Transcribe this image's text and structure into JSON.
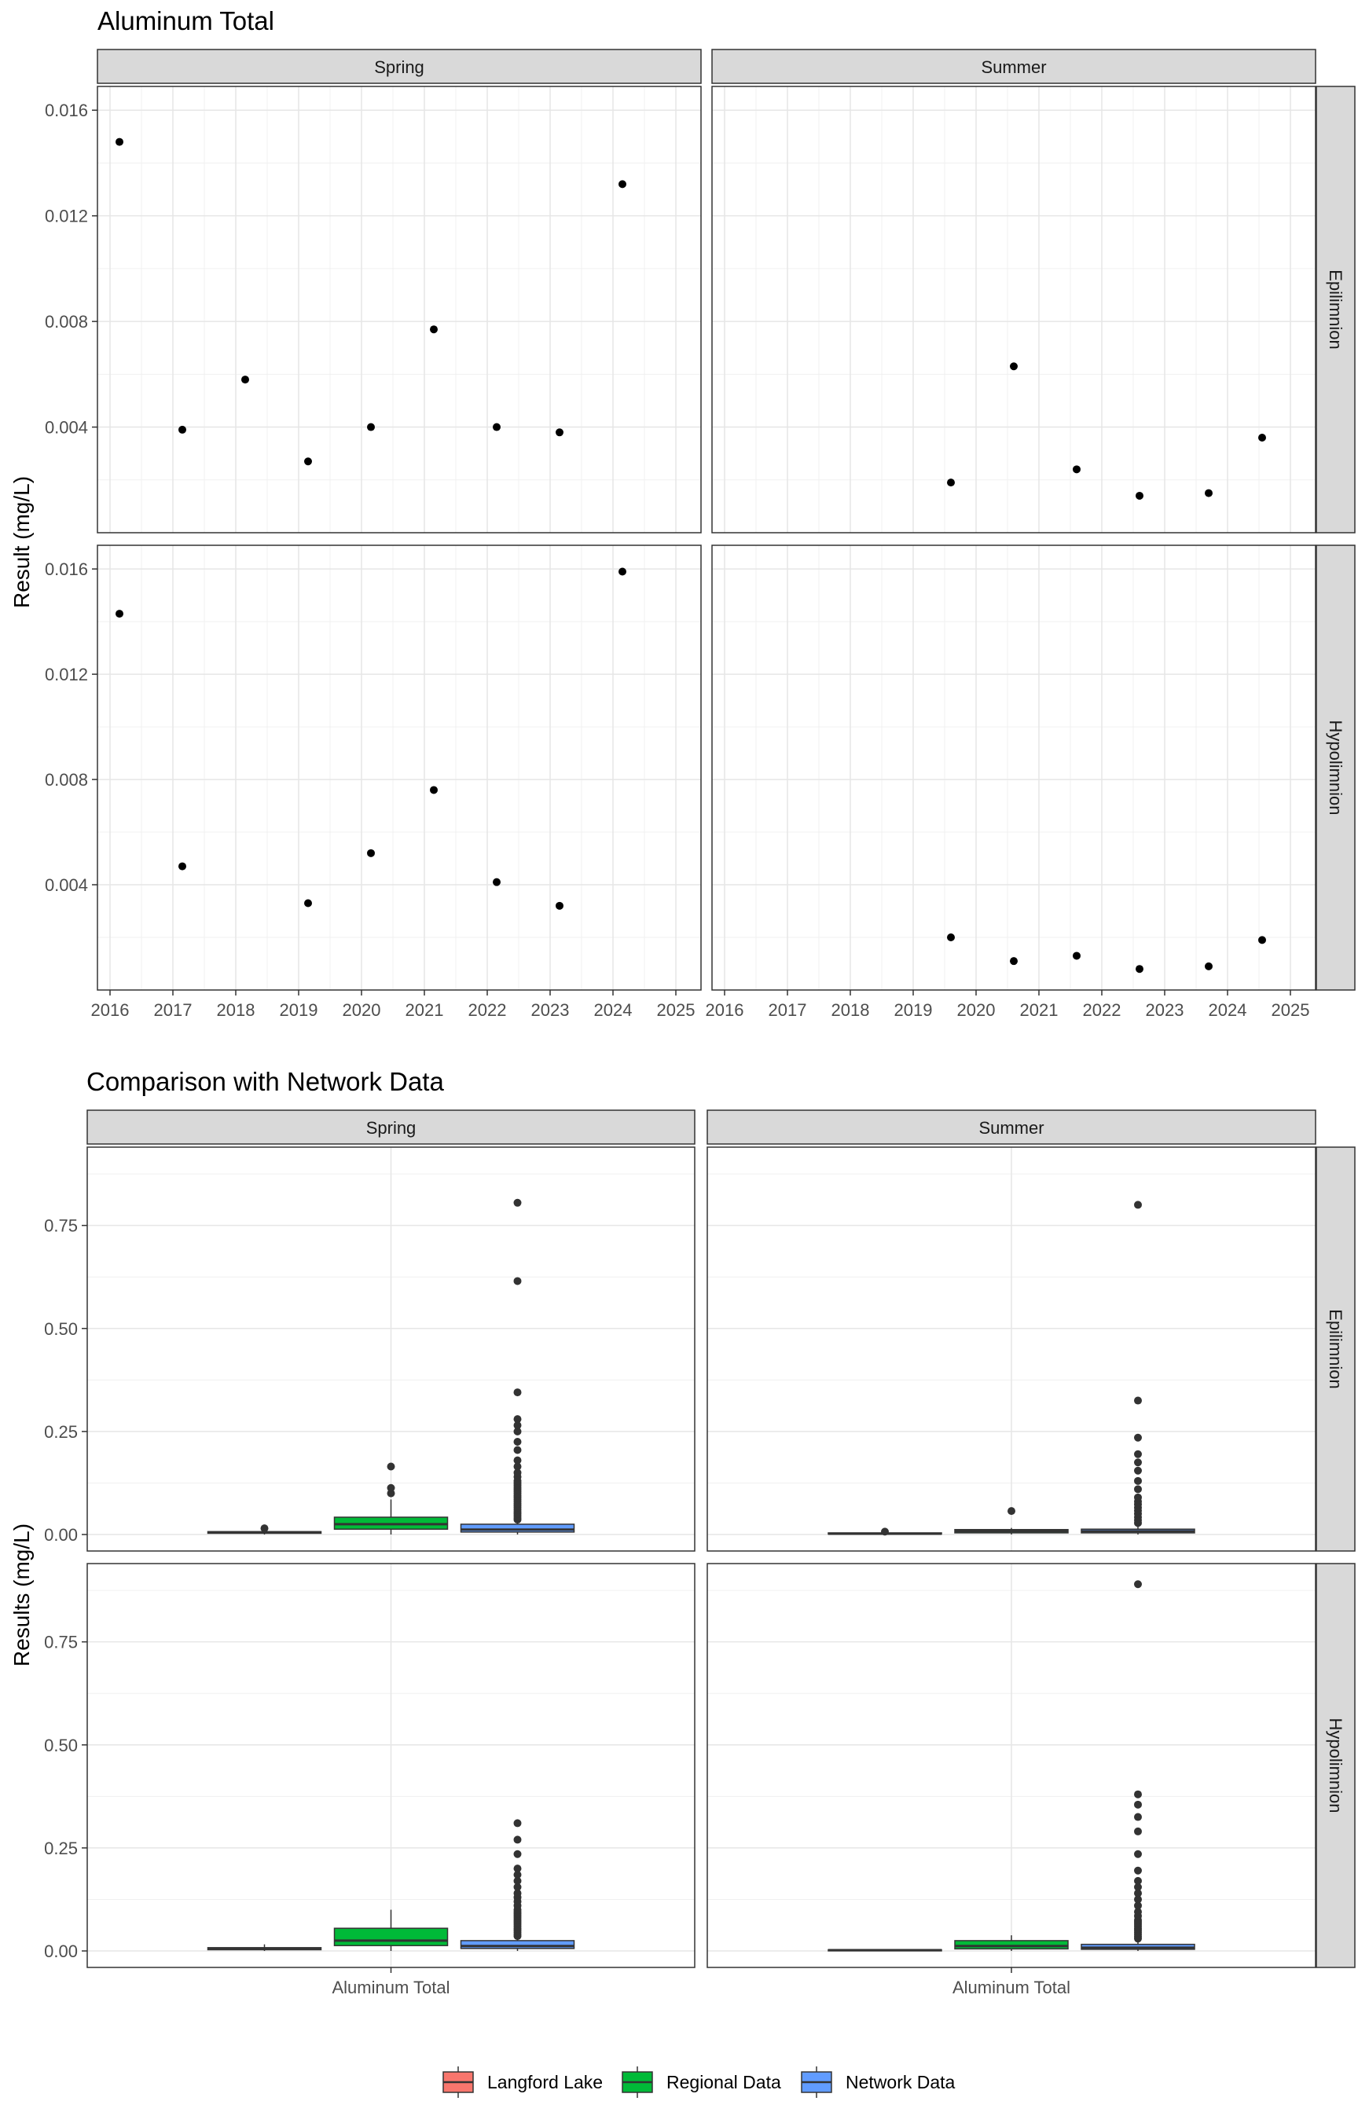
{
  "chart_data": [
    {
      "type": "scatter",
      "title": "Aluminum Total",
      "ylabel": "Result (mg/L)",
      "xlabel": "",
      "facet_cols": [
        "Spring",
        "Summer"
      ],
      "facet_rows": [
        "Epilimnion",
        "Hypolimnion"
      ],
      "xlim": [
        2015.8,
        2025.4
      ],
      "ylim": [
        0,
        0.0169
      ],
      "x_ticks": [
        2016,
        2017,
        2018,
        2019,
        2020,
        2021,
        2022,
        2023,
        2024,
        2025
      ],
      "x_tick_labels": [
        "2016",
        "2017",
        "2018",
        "2019",
        "2020",
        "2021",
        "2022",
        "2023",
        "2024",
        "2025"
      ],
      "y_ticks": [
        0.004,
        0.008,
        0.012,
        0.016
      ],
      "y_tick_labels": [
        "0.004",
        "0.008",
        "0.012",
        "0.016"
      ],
      "grid": true,
      "panels": [
        {
          "col": "Spring",
          "row": "Epilimnion",
          "x": [
            2016.15,
            2017.15,
            2018.15,
            2019.15,
            2020.15,
            2021.15,
            2022.15,
            2023.15,
            2024.15
          ],
          "y": [
            0.0148,
            0.0039,
            0.0058,
            0.0027,
            0.004,
            0.0077,
            0.004,
            0.0038,
            0.0132
          ]
        },
        {
          "col": "Summer",
          "row": "Epilimnion",
          "x": [
            2019.6,
            2020.6,
            2021.6,
            2022.6,
            2023.7,
            2024.55
          ],
          "y": [
            0.0019,
            0.0063,
            0.0024,
            0.0014,
            0.0015,
            0.0036
          ]
        },
        {
          "col": "Spring",
          "row": "Hypolimnion",
          "x": [
            2016.15,
            2017.15,
            2019.15,
            2020.15,
            2021.15,
            2022.15,
            2023.15,
            2024.15
          ],
          "y": [
            0.0143,
            0.0047,
            0.0033,
            0.0052,
            0.0076,
            0.0041,
            0.0032,
            0.0159
          ]
        },
        {
          "col": "Summer",
          "row": "Hypolimnion",
          "x": [
            2019.6,
            2020.6,
            2021.6,
            2022.6,
            2023.7,
            2024.55
          ],
          "y": [
            0.002,
            0.0011,
            0.0013,
            0.0008,
            0.0009,
            0.0019
          ]
        }
      ]
    },
    {
      "type": "box",
      "title": "Comparison with Network Data",
      "ylabel": "Results (mg/L)",
      "category": "Aluminum Total",
      "facet_cols": [
        "Spring",
        "Summer"
      ],
      "facet_rows": [
        "Epilimnion",
        "Hypolimnion"
      ],
      "ylim": [
        -0.04,
        0.94
      ],
      "y_ticks": [
        0,
        0.25,
        0.5,
        0.75
      ],
      "y_tick_labels": [
        "0.00",
        "0.25",
        "0.50",
        "0.75"
      ],
      "grid": true,
      "legend_position": "bottom",
      "groups": [
        {
          "name": "Langford Lake",
          "color": "#F8766D"
        },
        {
          "name": "Regional Data",
          "color": "#00BA38"
        },
        {
          "name": "Network Data",
          "color": "#619CFF"
        }
      ],
      "panels": [
        {
          "col": "Spring",
          "row": "Epilimnion",
          "boxes": [
            {
              "group": "Langford Lake",
              "min": 0.0,
              "q1": 0.003,
              "median": 0.005,
              "q3": 0.007,
              "max": 0.009,
              "outliers": [
                0.015
              ]
            },
            {
              "group": "Regional Data",
              "min": 0.0,
              "q1": 0.013,
              "median": 0.025,
              "q3": 0.042,
              "max": 0.085,
              "outliers": [
                0.1,
                0.113,
                0.165
              ]
            },
            {
              "group": "Network Data",
              "min": 0.0,
              "q1": 0.006,
              "median": 0.012,
              "q3": 0.025,
              "max": 0.032,
              "outliers": [
                0.036,
                0.04,
                0.045,
                0.05,
                0.055,
                0.06,
                0.065,
                0.07,
                0.075,
                0.08,
                0.085,
                0.09,
                0.095,
                0.1,
                0.105,
                0.11,
                0.115,
                0.12,
                0.125,
                0.13,
                0.14,
                0.15,
                0.165,
                0.18,
                0.205,
                0.225,
                0.25,
                0.265,
                0.28,
                0.345,
                0.615,
                0.805
              ]
            }
          ]
        },
        {
          "col": "Summer",
          "row": "Epilimnion",
          "boxes": [
            {
              "group": "Langford Lake",
              "min": 0.0,
              "q1": 0.001,
              "median": 0.002,
              "q3": 0.004,
              "max": 0.006,
              "outliers": [
                0.007
              ]
            },
            {
              "group": "Regional Data",
              "min": 0.0,
              "q1": 0.004,
              "median": 0.008,
              "q3": 0.012,
              "max": 0.016,
              "outliers": [
                0.057
              ]
            },
            {
              "group": "Network Data",
              "min": 0.0,
              "q1": 0.004,
              "median": 0.008,
              "q3": 0.013,
              "max": 0.02,
              "outliers": [
                0.028,
                0.035,
                0.042,
                0.05,
                0.058,
                0.065,
                0.073,
                0.08,
                0.09,
                0.11,
                0.13,
                0.155,
                0.175,
                0.195,
                0.235,
                0.325,
                0.8
              ]
            }
          ]
        },
        {
          "col": "Spring",
          "row": "Hypolimnion",
          "boxes": [
            {
              "group": "Langford Lake",
              "min": 0.0,
              "q1": 0.003,
              "median": 0.005,
              "q3": 0.008,
              "max": 0.016,
              "outliers": []
            },
            {
              "group": "Regional Data",
              "min": 0.0,
              "q1": 0.013,
              "median": 0.025,
              "q3": 0.055,
              "max": 0.1,
              "outliers": []
            },
            {
              "group": "Network Data",
              "min": 0.0,
              "q1": 0.006,
              "median": 0.012,
              "q3": 0.025,
              "max": 0.032,
              "outliers": [
                0.036,
                0.04,
                0.045,
                0.05,
                0.055,
                0.06,
                0.065,
                0.07,
                0.075,
                0.08,
                0.085,
                0.09,
                0.095,
                0.1,
                0.11,
                0.12,
                0.13,
                0.14,
                0.155,
                0.17,
                0.185,
                0.2,
                0.235,
                0.27,
                0.31
              ]
            }
          ]
        },
        {
          "col": "Summer",
          "row": "Hypolimnion",
          "boxes": [
            {
              "group": "Langford Lake",
              "min": 0.0,
              "q1": 0.001,
              "median": 0.002,
              "q3": 0.003,
              "max": 0.004,
              "outliers": []
            },
            {
              "group": "Regional Data",
              "min": 0.0,
              "q1": 0.005,
              "median": 0.012,
              "q3": 0.025,
              "max": 0.038,
              "outliers": []
            },
            {
              "group": "Network Data",
              "min": 0.0,
              "q1": 0.004,
              "median": 0.008,
              "q3": 0.016,
              "max": 0.025,
              "outliers": [
                0.03,
                0.035,
                0.04,
                0.045,
                0.05,
                0.055,
                0.06,
                0.065,
                0.07,
                0.075,
                0.085,
                0.095,
                0.11,
                0.125,
                0.14,
                0.155,
                0.17,
                0.195,
                0.235,
                0.29,
                0.325,
                0.355,
                0.38,
                0.89
              ]
            }
          ]
        }
      ]
    }
  ]
}
